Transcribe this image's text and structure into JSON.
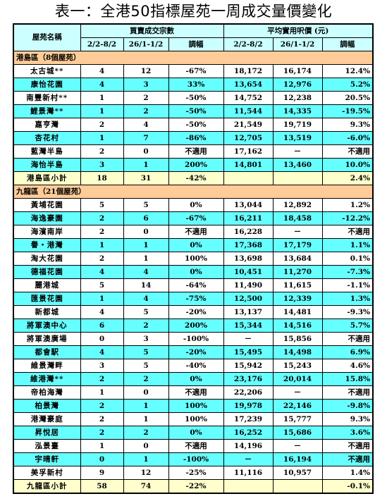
{
  "title": "表一：全港50指標屋苑一周成交量價變化",
  "headers": {
    "estate": "屋苑名稱",
    "volume_group": "買賣成交宗數",
    "price_group": "平均實用呎價 (元)",
    "period1": "2/2-8/2",
    "period2": "26/1-1/2",
    "change": "調幅"
  },
  "sections": [
    {
      "label": "港島區（8個屋苑）",
      "rows": [
        {
          "name": "太古城**",
          "v1": "4",
          "v2": "12",
          "vchg": "-67%",
          "p1": "18,172",
          "p2": "16,174",
          "pchg": "12.4%"
        },
        {
          "name": "康怡花園",
          "v1": "4",
          "v2": "3",
          "vchg": "33%",
          "p1": "13,654",
          "p2": "12,976",
          "pchg": "5.2%"
        },
        {
          "name": "南豐新村**",
          "v1": "1",
          "v2": "2",
          "vchg": "-50%",
          "p1": "14,752",
          "p2": "12,238",
          "pchg": "20.5%"
        },
        {
          "name": "鯉景灣**",
          "v1": "1",
          "v2": "2",
          "vchg": "-50%",
          "p1": "11,544",
          "p2": "14,335",
          "pchg": "-19.5%"
        },
        {
          "name": "嘉亨灣",
          "v1": "2",
          "v2": "4",
          "vchg": "-50%",
          "p1": "21,549",
          "p2": "19,719",
          "pchg": "9.3%"
        },
        {
          "name": "杏花村",
          "v1": "1",
          "v2": "7",
          "vchg": "-86%",
          "p1": "12,705",
          "p2": "13,519",
          "pchg": "-6.0%"
        },
        {
          "name": "藍灣半島",
          "v1": "2",
          "v2": "0",
          "vchg": "不適用",
          "p1": "17,162",
          "p2": "－",
          "pchg": "不適用"
        },
        {
          "name": "海怡半島",
          "v1": "3",
          "v2": "1",
          "vchg": "200%",
          "p1": "14,801",
          "p2": "13,460",
          "pchg": "10.0%"
        }
      ],
      "subtotal": {
        "name": "港島區小計",
        "v1": "18",
        "v2": "31",
        "vchg": "-42%",
        "p1": "",
        "p2": "",
        "pchg": "2.4%"
      }
    },
    {
      "label": "九龍區（21個屋苑）",
      "rows": [
        {
          "name": "黃埔花園",
          "v1": "5",
          "v2": "5",
          "vchg": "0%",
          "p1": "13,044",
          "p2": "12,892",
          "pchg": "1.2%"
        },
        {
          "name": "海逸豪園",
          "v1": "2",
          "v2": "6",
          "vchg": "-67%",
          "p1": "16,211",
          "p2": "18,458",
          "pchg": "-12.2%"
        },
        {
          "name": "海濱南岸",
          "v1": "2",
          "v2": "0",
          "vchg": "不適用",
          "p1": "16,228",
          "p2": "－",
          "pchg": "不適用"
        },
        {
          "name": "譽・港灣",
          "v1": "1",
          "v2": "1",
          "vchg": "0%",
          "p1": "17,368",
          "p2": "17,179",
          "pchg": "1.1%"
        },
        {
          "name": "淘大花園",
          "v1": "2",
          "v2": "1",
          "vchg": "100%",
          "p1": "13,698",
          "p2": "13,684",
          "pchg": "0.1%"
        },
        {
          "name": "德福花園",
          "v1": "4",
          "v2": "4",
          "vchg": "0%",
          "p1": "10,451",
          "p2": "11,270",
          "pchg": "-7.3%"
        },
        {
          "name": "麗港城",
          "v1": "5",
          "v2": "14",
          "vchg": "-64%",
          "p1": "11,490",
          "p2": "11,615",
          "pchg": "-1.1%"
        },
        {
          "name": "匯景花園",
          "v1": "1",
          "v2": "4",
          "vchg": "-75%",
          "p1": "12,500",
          "p2": "12,339",
          "pchg": "1.3%"
        },
        {
          "name": "新都城",
          "v1": "4",
          "v2": "5",
          "vchg": "-20%",
          "p1": "13,137",
          "p2": "14,481",
          "pchg": "-9.3%"
        },
        {
          "name": "將軍澳中心",
          "v1": "6",
          "v2": "2",
          "vchg": "200%",
          "p1": "15,344",
          "p2": "14,516",
          "pchg": "5.7%"
        },
        {
          "name": "將軍澳廣場",
          "v1": "0",
          "v2": "3",
          "vchg": "-100%",
          "p1": "－",
          "p2": "15,856",
          "pchg": "不適用"
        },
        {
          "name": "都會駅",
          "v1": "4",
          "v2": "5",
          "vchg": "-20%",
          "p1": "15,495",
          "p2": "14,498",
          "pchg": "6.9%"
        },
        {
          "name": "維景灣畔",
          "v1": "3",
          "v2": "5",
          "vchg": "-40%",
          "p1": "15,942",
          "p2": "15,243",
          "pchg": "4.6%"
        },
        {
          "name": "維港灣**",
          "v1": "2",
          "v2": "2",
          "vchg": "0%",
          "p1": "23,176",
          "p2": "20,014",
          "pchg": "15.8%"
        },
        {
          "name": "帝柏海灣",
          "v1": "1",
          "v2": "0",
          "vchg": "不適用",
          "p1": "22,206",
          "p2": "－",
          "pchg": "不適用"
        },
        {
          "name": "柏景灣",
          "v1": "2",
          "v2": "1",
          "vchg": "100%",
          "p1": "19,978",
          "p2": "22,146",
          "pchg": "-9.8%"
        },
        {
          "name": "港灣豪庭",
          "v1": "2",
          "v2": "1",
          "vchg": "100%",
          "p1": "17,239",
          "p2": "15,777",
          "pchg": "9.3%"
        },
        {
          "name": "昇悅居",
          "v1": "2",
          "v2": "2",
          "vchg": "0%",
          "p1": "16,252",
          "p2": "15,686",
          "pchg": "3.6%"
        },
        {
          "name": "泓景臺",
          "v1": "1",
          "v2": "0",
          "vchg": "不適用",
          "p1": "14,196",
          "p2": "－",
          "pchg": "不適用"
        },
        {
          "name": "宇晴軒",
          "v1": "0",
          "v2": "1",
          "vchg": "-100%",
          "p1": "－",
          "p2": "16,194",
          "pchg": "不適用"
        },
        {
          "name": "美孚新村",
          "v1": "9",
          "v2": "12",
          "vchg": "-25%",
          "p1": "11,116",
          "p2": "10,957",
          "pchg": "1.4%"
        }
      ],
      "subtotal": {
        "name": "九龍區小計",
        "v1": "58",
        "v2": "74",
        "vchg": "-22%",
        "p1": "",
        "p2": "",
        "pchg": "-0.1%"
      }
    }
  ],
  "colors": {
    "header_bg": "#ccffff",
    "section_bg": "#ffcc99",
    "row_alt_bg": "#66ffff",
    "subtotal_bg": "#ffffcc"
  }
}
